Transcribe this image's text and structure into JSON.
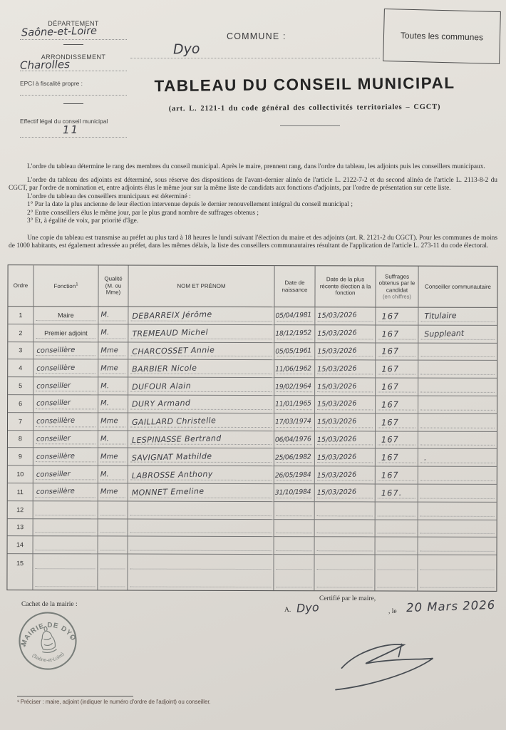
{
  "document": {
    "top_left": {
      "departement_label": "DÉPARTEMENT",
      "departement_value": "Saône-et-Loire",
      "arrondissement_label": "ARRONDISSEMENT",
      "arrondissement_value": "Charolles",
      "epci_label": "EPCI à fiscalité propre :",
      "effectif_label": "Effectif légal du conseil municipal",
      "effectif_value": "11"
    },
    "commune_label": "COMMUNE :",
    "commune_value": "Dyo",
    "corner_box_label": "Toutes les communes",
    "title": "TABLEAU DU CONSEIL MUNICIPAL",
    "subtitle": "(art. L. 2121-1 du code général des  collectivités territoriales – CGCT)",
    "paragraphs": [
      "L'ordre du tableau détermine le rang des membres du conseil municipal. Après le maire, prennent rang, dans l'ordre du tableau, les adjoints puis les conseillers municipaux.",
      "L'ordre du tableau des adjoints est déterminé, sous réserve des dispositions de l'avant-dernier alinéa de l'article L. 2122-7-2 et du second alinéa de l'article L. 2113-8-2 du CGCT, par l'ordre de nomination et, entre adjoints élus le même jour sur la même liste de candidats aux fonctions d'adjoints, par l'ordre de présentation sur cette liste.",
      "L'ordre du tableau des conseillers municipaux est déterminé :",
      "1° Par la date la plus ancienne de leur élection intervenue depuis le dernier renouvellement intégral du conseil municipal ;",
      "2° Entre conseillers élus le même jour, par le plus grand nombre de suffrages obtenus ;",
      "3° Et, à égalité de voix, par priorité d'âge.",
      "Une copie du tableau est transmise au préfet au plus tard à 18 heures le lundi suivant l'élection du maire et des adjoints (art. R. 2121-2 du CGCT). Pour les communes de moins de 1000 habitants, est également adressée au préfet, dans les mêmes délais, la liste des conseillers communautaires résultant de l'application de l'article L. 273-11 du code électoral."
    ],
    "table": {
      "headers": [
        {
          "key": "ordre",
          "text": "Ordre"
        },
        {
          "key": "fonction",
          "text": "Fonction",
          "sup": "1"
        },
        {
          "key": "qualite",
          "text": "Qualité (M. ou Mme)"
        },
        {
          "key": "nom",
          "text": "NOM ET PRÉNOM"
        },
        {
          "key": "naissance",
          "text": "Date de naissance"
        },
        {
          "key": "election",
          "text": "Date de la plus récente élection à la fonction"
        },
        {
          "key": "suffrages",
          "text": "Suffrages obtenus par le candidat",
          "sub": "(en chiffres)"
        },
        {
          "key": "communautaire",
          "text": "Conseiller communautaire"
        }
      ],
      "rows": [
        {
          "ordre": "1",
          "fonction": "Maire",
          "fonction_style": "print",
          "qualite": "M.",
          "nom": "DEBARREIX Jérôme",
          "naissance": "05/04/1981",
          "election": "15/03/2026",
          "suffrages": "167",
          "communautaire": "Titulaire"
        },
        {
          "ordre": "2",
          "fonction": "Premier adjoint",
          "fonction_style": "print",
          "qualite": "M.",
          "nom": "TREMEAUD Michel",
          "naissance": "18/12/1952",
          "election": "15/03/2026",
          "suffrages": "167",
          "communautaire": "Suppleant"
        },
        {
          "ordre": "3",
          "fonction": "conseillère",
          "fonction_style": "hand",
          "qualite": "Mme",
          "nom": "CHARCOSSET Annie",
          "naissance": "05/05/1961",
          "election": "15/03/2026",
          "suffrages": "167",
          "communautaire": ""
        },
        {
          "ordre": "4",
          "fonction": "conseillère",
          "fonction_style": "hand",
          "qualite": "Mme",
          "nom": "BARBIER Nicole",
          "naissance": "11/06/1962",
          "election": "15/03/2026",
          "suffrages": "167",
          "communautaire": ""
        },
        {
          "ordre": "5",
          "fonction": "conseiller",
          "fonction_style": "hand",
          "qualite": "M.",
          "nom": "DUFOUR Alain",
          "naissance": "19/02/1964",
          "election": "15/03/2026",
          "suffrages": "167",
          "communautaire": ""
        },
        {
          "ordre": "6",
          "fonction": "conseiller",
          "fonction_style": "hand",
          "qualite": "M.",
          "nom": "DURY Armand",
          "naissance": "11/01/1965",
          "election": "15/03/2026",
          "suffrages": "167",
          "communautaire": ""
        },
        {
          "ordre": "7",
          "fonction": "conseillère",
          "fonction_style": "hand",
          "qualite": "Mme",
          "nom": "GAILLARD Christelle",
          "naissance": "17/03/1974",
          "election": "15/03/2026",
          "suffrages": "167",
          "communautaire": ""
        },
        {
          "ordre": "8",
          "fonction": "conseiller",
          "fonction_style": "hand",
          "qualite": "M.",
          "nom": "LESPINASSE Bertrand",
          "naissance": "06/04/1976",
          "election": "15/03/2026",
          "suffrages": "167",
          "communautaire": ""
        },
        {
          "ordre": "9",
          "fonction": "conseillère",
          "fonction_style": "hand",
          "qualite": "Mme",
          "nom": "SAVIGNAT Mathilde",
          "naissance": "25/06/1982",
          "election": "15/03/2026",
          "suffrages": "167",
          "communautaire": "."
        },
        {
          "ordre": "10",
          "fonction": "conseiller",
          "fonction_style": "hand",
          "qualite": "M.",
          "nom": "LABROSSE Anthony",
          "naissance": "26/05/1984",
          "election": "15/03/2026",
          "suffrages": "167",
          "communautaire": ""
        },
        {
          "ordre": "11",
          "fonction": "conseillère",
          "fonction_style": "hand",
          "qualite": "Mme",
          "nom": "MONNET Emeline",
          "naissance": "31/10/1984",
          "election": "15/03/2026",
          "suffrages": "167.",
          "communautaire": ""
        },
        {
          "ordre": "12",
          "fonction": "",
          "qualite": "",
          "nom": "",
          "naissance": "",
          "election": "",
          "suffrages": "",
          "communautaire": ""
        },
        {
          "ordre": "13",
          "fonction": "",
          "qualite": "",
          "nom": "",
          "naissance": "",
          "election": "",
          "suffrages": "",
          "communautaire": ""
        },
        {
          "ordre": "14",
          "fonction": "",
          "qualite": "",
          "nom": "",
          "naissance": "",
          "election": "",
          "suffrages": "",
          "communautaire": ""
        },
        {
          "ordre": "15",
          "fonction": "",
          "qualite": "",
          "nom": "",
          "naissance": "",
          "election": "",
          "suffrages": "",
          "communautaire": ""
        },
        {
          "ordre": "",
          "fonction": "",
          "qualite": "",
          "nom": "",
          "naissance": "",
          "election": "",
          "suffrages": "",
          "communautaire": ""
        }
      ]
    },
    "footer": {
      "cachet_label": "Cachet de la mairie :",
      "stamp_top": "MAIRIE DE DYO",
      "stamp_bottom": "(Saône-et-Loire)",
      "certify_label": "Certifié par le maire,",
      "a_label": "A.",
      "place_value": "Dyo",
      "le_label": ", le",
      "date_value": "20 Mars 2026",
      "footnote": "¹ Préciser : maire, adjoint (indiquer le numéro d'ordre de l'adjoint) ou conseiller."
    }
  }
}
